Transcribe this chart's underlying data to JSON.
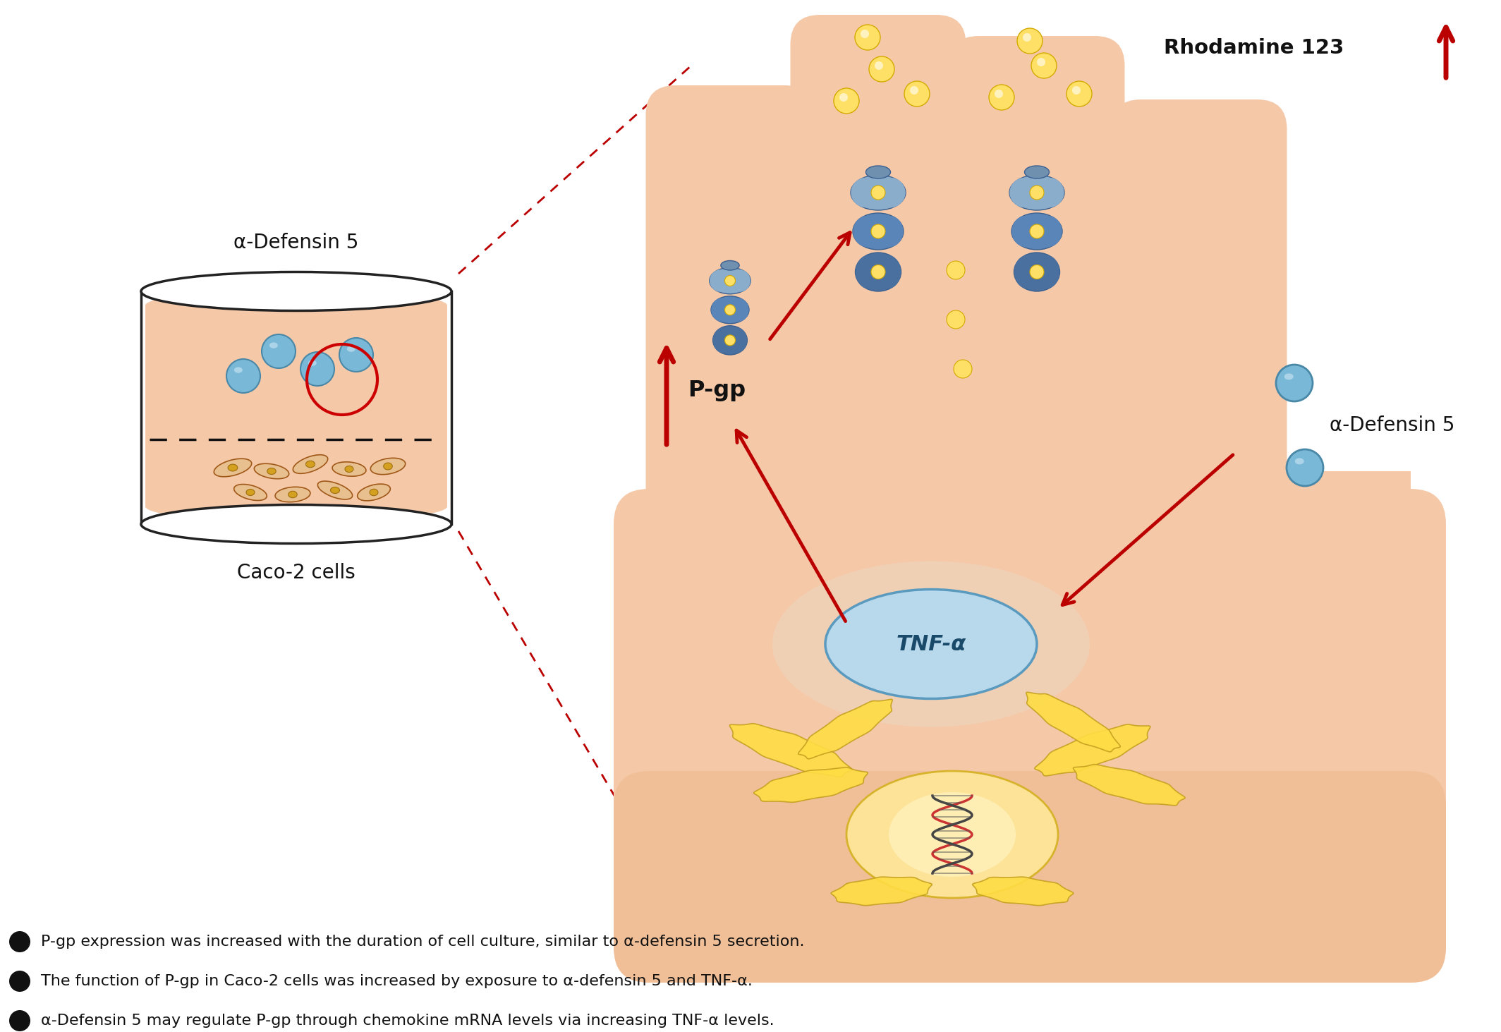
{
  "background_color": "#ffffff",
  "bullet_texts": [
    "P-gp expression was increased with the duration of cell culture, similar to α-defensin 5 secretion.",
    "The function of P-gp in Caco-2 cells was increased by exposure to α-defensin 5 and TNF-α.",
    "α-Defensin 5 may regulate P-gp through chemokine mRNA levels via increasing TNF-α levels."
  ],
  "skin_color": "#F5C8A8",
  "skin_dark": "#E8A878",
  "pgp_color_light": "#8AADCC",
  "pgp_color_dark": "#4A70A0",
  "pgp_color_mid": "#5A85B8",
  "rhodamine_color": "#FFE066",
  "rhodamine_edge": "#D4AA00",
  "tnf_fill": "#B8D8EC",
  "tnf_border": "#5A9ABF",
  "arrow_color": "#BB0000",
  "defensin_ball_color": "#7AB8D8",
  "defensin_ball_edge": "#4A88A8",
  "defensin_ball_highlight": "#C0E0F0",
  "dot_line_color": "#BB0000",
  "dish_edge": "#222222",
  "dish_bg": "#ffffff",
  "liquid_color": "#F5C8A8",
  "cell_color": "#D4882A",
  "cell_edge": "#A05818",
  "nucleus_color": "#FFE8A0",
  "nucleus_edge": "#D4B030",
  "golgi_color": "#FFDD44",
  "golgi_edge": "#C4A020",
  "dna_color1": "#CC3333",
  "dna_color2": "#444444",
  "bullet_color": "#111111"
}
